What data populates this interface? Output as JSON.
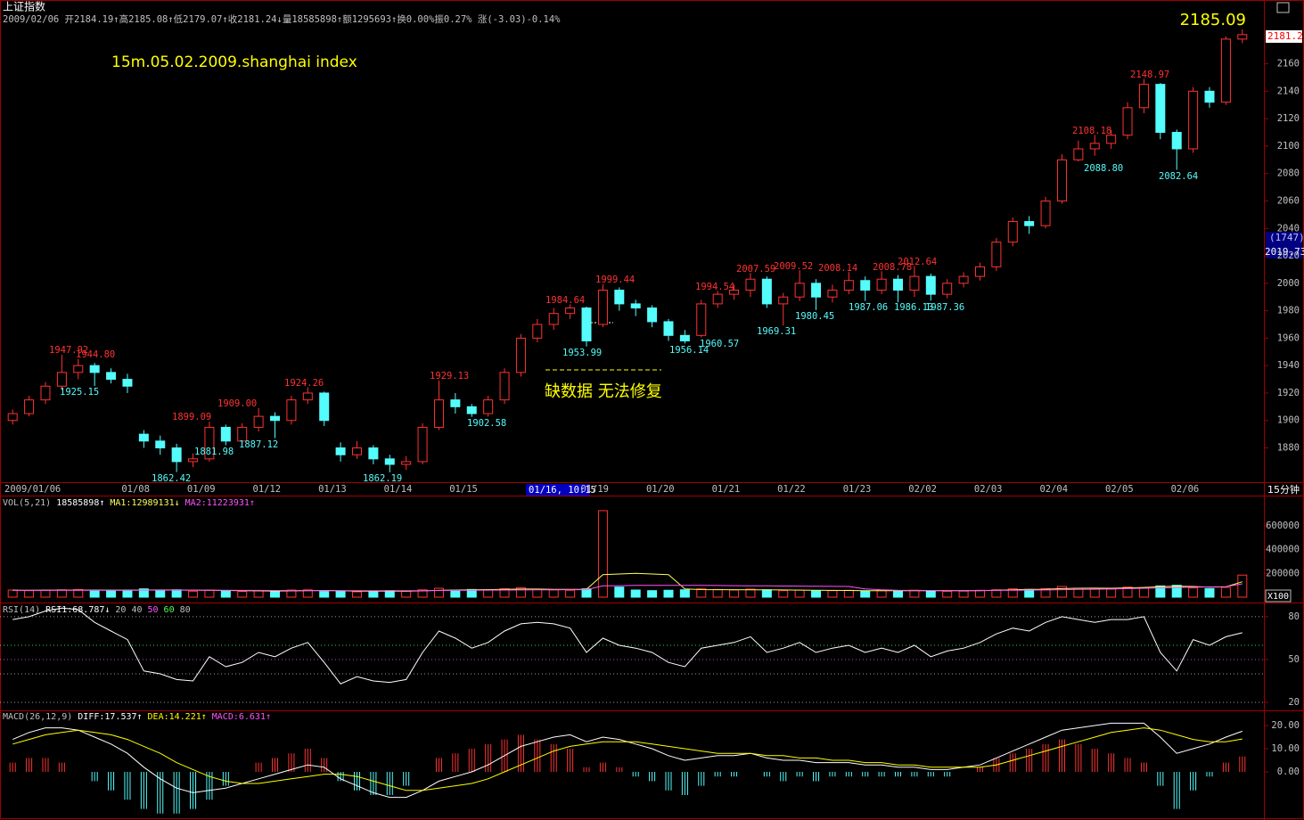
{
  "chart_data": [
    {
      "type": "candlestick",
      "title": "上证指数",
      "subtitle": "2009/02/06 开2184.19↑高2185.08↑低2179.07↑收2181.24↓量18585898↑额1295693↑换0.00%振0.27% 涨(-3.03)-0.14%",
      "price_readout": "2185.09",
      "annotations": [
        "15m.05.02.2009.shanghai index",
        "缺数据 无法修复"
      ],
      "right_labels": [
        "2181.2",
        "(1747)",
        "2019.73"
      ],
      "cursor_label": "01/16, 10:15",
      "period": "15分钟",
      "categories": [
        "2009/01/06",
        null,
        null,
        null,
        null,
        null,
        null,
        null,
        "01/08",
        null,
        null,
        null,
        "01/09",
        null,
        null,
        null,
        "01/12",
        null,
        null,
        null,
        "01/13",
        null,
        null,
        null,
        "01/14",
        null,
        null,
        null,
        "01/15",
        null,
        null,
        null,
        null,
        null,
        null,
        null,
        "01/19",
        null,
        null,
        null,
        "01/20",
        null,
        null,
        null,
        "01/21",
        null,
        null,
        null,
        "01/22",
        null,
        null,
        null,
        "01/23",
        null,
        null,
        null,
        "02/02",
        null,
        null,
        null,
        "02/03",
        null,
        null,
        null,
        "02/04",
        null,
        null,
        null,
        "02/05",
        null,
        null,
        null,
        "02/06",
        null,
        null,
        null
      ],
      "open": [
        1900,
        1905,
        1915,
        1925,
        1935,
        1940,
        1935,
        1930,
        1890,
        1885,
        1880,
        1870,
        1872,
        1895,
        1885,
        1895,
        1903,
        1900,
        1915,
        1920,
        1880,
        1875,
        1880,
        1872,
        1868,
        1870,
        1895,
        1915,
        1910,
        1905,
        1915,
        1935,
        1960,
        1970,
        1978,
        1982,
        1970,
        1995,
        1985,
        1982,
        1972,
        1962,
        1962,
        1985,
        1992,
        1995,
        2003,
        1985,
        1990,
        2000,
        1990,
        1995,
        2002,
        1995,
        2003,
        1995,
        2005,
        1992,
        2000,
        2005,
        2012,
        2030,
        2045,
        2042,
        2060,
        2090,
        2098,
        2102,
        2108,
        2128,
        2145,
        2110,
        2098,
        2140,
        2132,
        2178
      ],
      "high": [
        1908,
        1918,
        1928,
        1947.92,
        1944.8,
        1942,
        1938,
        1934,
        1893,
        1889,
        1883,
        1876,
        1899.09,
        1897,
        1898,
        1909,
        1906,
        1918,
        1924.26,
        1921,
        1884,
        1885,
        1882,
        1875,
        1874,
        1898,
        1929.13,
        1920,
        1912,
        1918,
        1938,
        1963,
        1974,
        1982,
        1984.64,
        1983,
        1999.44,
        1997,
        1988,
        1984,
        1974,
        1966,
        1988,
        1994.54,
        1999,
        2007.59,
        2005,
        1993,
        2009.52,
        2003,
        1999,
        2008.14,
        2005,
        2008.78,
        2006,
        2012.64,
        2007,
        2003,
        2008,
        2015,
        2033,
        2048,
        2049,
        2063,
        2094,
        2104,
        2108.18,
        2112,
        2132,
        2148.97,
        2146,
        2112,
        2143,
        2143,
        2180,
        2185.08
      ],
      "low": [
        1897,
        1903,
        1912,
        1922,
        1930,
        1925.15,
        1927,
        1920,
        1880,
        1875,
        1862.42,
        1866,
        1870,
        1881.98,
        1883,
        1892,
        1887.12,
        1897,
        1912,
        1896,
        1870,
        1872,
        1868,
        1862.19,
        1864,
        1868,
        1893,
        1905,
        1902.58,
        1903,
        1912,
        1932,
        1957,
        1966,
        1974,
        1953.99,
        1968,
        1980,
        1976,
        1968,
        1958,
        1956.14,
        1960.57,
        1982,
        1988,
        1990,
        1982,
        1969.31,
        1987,
        1980.45,
        1986,
        1992,
        1987.06,
        1992,
        1986.13,
        1990,
        1987.36,
        1989,
        1997,
        2002,
        2009,
        2027,
        2036,
        2040,
        2058,
        2088.8,
        2093,
        2098,
        2105,
        2124,
        2105,
        2082.64,
        2095,
        2128,
        2130,
        2175
      ],
      "close": [
        1905,
        1915,
        1925,
        1935,
        1940,
        1935,
        1930,
        1925,
        1885,
        1880,
        1870,
        1872,
        1895,
        1885,
        1895,
        1903,
        1900,
        1915,
        1920,
        1900,
        1875,
        1880,
        1872,
        1868,
        1870,
        1895,
        1915,
        1910,
        1905,
        1915,
        1935,
        1960,
        1970,
        1978,
        1982,
        1958,
        1995,
        1985,
        1982,
        1972,
        1962,
        1958,
        1985,
        1992,
        1995,
        2003,
        1985,
        1990,
        2000,
        1990,
        1995,
        2002,
        1995,
        2003,
        1995,
        2005,
        1992,
        2000,
        2005,
        2012,
        2030,
        2045,
        2042,
        2060,
        2090,
        2098,
        2102,
        2108,
        2128,
        2145,
        2110,
        2098,
        2140,
        2132,
        2178,
        2181.24
      ],
      "up_color": "#ff3232",
      "down_color": "#54fcfc",
      "high_labels": [
        "1947.92",
        "1944.80",
        "1899.09",
        "1909.00",
        "1924.26",
        "1929.13",
        "1984.64",
        "1999.44",
        "1994.54",
        "2007.59",
        "2009.52",
        "2008.14",
        "2008.78",
        "2012.64",
        "2108.18",
        "2148.97"
      ],
      "low_labels": [
        "1925.15",
        "1862.42",
        "1881.98",
        "1887.12",
        "1862.19",
        "1902.58",
        "1953.99",
        "1956.14",
        "1960.57",
        "1969.31",
        "1980.45",
        "1987.06",
        "1986.13",
        "1987.36",
        "2088.80",
        "2082.64"
      ],
      "ylim": [
        1855,
        2187
      ],
      "yticks": [
        1880,
        1900,
        1920,
        1940,
        1960,
        1980,
        2000,
        2020,
        2040,
        2060,
        2080,
        2100,
        2120,
        2140,
        2160
      ]
    },
    {
      "type": "bar",
      "title": "VOL(5,21)",
      "value_readout": "18585898↑",
      "unit_label": "X100",
      "values": [
        60000,
        55000,
        58000,
        62000,
        65000,
        52000,
        58000,
        60000,
        70000,
        55000,
        62000,
        50000,
        58000,
        52000,
        48000,
        55000,
        50000,
        60000,
        62000,
        48000,
        52000,
        45000,
        48000,
        55000,
        50000,
        62000,
        75000,
        58000,
        65000,
        60000,
        72000,
        80000,
        65000,
        62000,
        58000,
        70000,
        728000,
        85000,
        60000,
        55000,
        58000,
        62000,
        70000,
        65000,
        60000,
        68000,
        62000,
        55000,
        60000,
        52000,
        55000,
        58000,
        50000,
        55000,
        52000,
        58000,
        55000,
        50000,
        52000,
        58000,
        62000,
        70000,
        65000,
        72000,
        90000,
        75000,
        70000,
        68000,
        85000,
        80000,
        95000,
        100000,
        78000,
        72000,
        82000,
        185858.98
      ],
      "series": [
        {
          "name": "MA1:12989131↓",
          "color": "#ffff54",
          "values": [
            58000,
            58000,
            59000,
            59000,
            59000,
            60000,
            59000,
            59000,
            60000,
            61000,
            60000,
            59000,
            58000,
            56000,
            54000,
            53000,
            52000,
            53000,
            55000,
            56000,
            54000,
            51000,
            50000,
            50000,
            51000,
            53000,
            57000,
            60000,
            62000,
            64000,
            66000,
            68000,
            68000,
            66000,
            65000,
            66000,
            190000,
            195000,
            200000,
            195000,
            190000,
            70000,
            64000,
            63000,
            63000,
            62000,
            62000,
            61000,
            59000,
            58000,
            57000,
            56000,
            55000,
            54000,
            54000,
            54000,
            54000,
            54000,
            54000,
            55000,
            58000,
            62000,
            65000,
            67000,
            72000,
            75000,
            76000,
            75000,
            78000,
            82000,
            88000,
            92000,
            90000,
            85000,
            87000,
            129891.31
          ]
        },
        {
          "name": "MA2:11223931↑",
          "color": "#ff54ff",
          "values": [
            57000,
            57000,
            57000,
            58000,
            58000,
            58000,
            58000,
            58000,
            59000,
            59000,
            59000,
            59000,
            58000,
            58000,
            57000,
            57000,
            56000,
            56000,
            56000,
            55000,
            55000,
            54000,
            54000,
            54000,
            54000,
            55000,
            56000,
            57000,
            58000,
            59000,
            60000,
            61000,
            62000,
            62000,
            63000,
            63000,
            95000,
            97000,
            99000,
            100000,
            100000,
            100000,
            99000,
            98000,
            97000,
            96000,
            95000,
            94000,
            93000,
            92000,
            91000,
            90000,
            70000,
            62000,
            58000,
            57000,
            56000,
            56000,
            56000,
            56000,
            57000,
            58000,
            60000,
            61000,
            63000,
            65000,
            67000,
            69000,
            72000,
            75000,
            78000,
            82000,
            84000,
            86000,
            88000,
            112239.31
          ]
        }
      ],
      "ylim": [
        0,
        840000
      ],
      "yticks": [
        200000,
        400000,
        600000
      ]
    },
    {
      "type": "line",
      "title": "RSI(14)",
      "series": [
        {
          "name": "RSI1:68.787↓",
          "color": "#ffffff",
          "values": [
            78,
            80,
            84,
            86,
            85,
            76,
            70,
            64,
            42,
            40,
            36,
            35,
            52,
            45,
            48,
            55,
            52,
            58,
            62,
            48,
            33,
            38,
            35,
            34,
            36,
            55,
            70,
            65,
            58,
            62,
            70,
            75,
            76,
            75,
            72,
            55,
            65,
            60,
            58,
            55,
            48,
            45,
            58,
            60,
            62,
            66,
            55,
            58,
            62,
            55,
            58,
            60,
            55,
            58,
            55,
            60,
            52,
            56,
            58,
            62,
            68,
            72,
            70,
            76,
            80,
            78,
            76,
            78,
            78,
            80,
            55,
            42,
            64,
            60,
            66,
            68.787
          ]
        }
      ],
      "levels": [
        20,
        40,
        50,
        60,
        80
      ],
      "level_colors": [
        "#c0c0c0",
        "#c0c0c0",
        "#ff54ff",
        "#54ff54",
        "#c0c0c0"
      ],
      "ylim": [
        14.4,
        88.7
      ],
      "yticks": [
        20,
        50,
        80
      ]
    },
    {
      "type": "macd",
      "title": "MACD(26,12,9)",
      "series": [
        {
          "name": "DIFF:17.537↑",
          "color": "#ffffff",
          "values": [
            14,
            17,
            19,
            19,
            18,
            15,
            12,
            8,
            2,
            -3,
            -7,
            -9,
            -8,
            -7,
            -5,
            -3,
            -1,
            1,
            3,
            2,
            -3,
            -6,
            -9,
            -11,
            -11,
            -8,
            -4,
            -2,
            0,
            3,
            7,
            11,
            13,
            15,
            16,
            13,
            15,
            14,
            12,
            10,
            7,
            5,
            6,
            7,
            7,
            8,
            6,
            5,
            5,
            4,
            4,
            4,
            3,
            3,
            2,
            2,
            1,
            1,
            2,
            3,
            6,
            9,
            12,
            15,
            18,
            19,
            20,
            21,
            21,
            21,
            15,
            8,
            10,
            12,
            15,
            17.537
          ]
        },
        {
          "name": "DEA:14.221↑",
          "color": "#ffff00",
          "values": [
            12,
            14,
            16,
            17,
            18,
            17,
            16,
            14,
            11,
            8,
            4,
            1,
            -2,
            -4,
            -5,
            -5,
            -4,
            -3,
            -2,
            -1,
            -1,
            -2,
            -4,
            -6,
            -8,
            -8,
            -7,
            -6,
            -5,
            -3,
            0,
            3,
            6,
            9,
            11,
            12,
            13,
            13,
            13,
            12,
            11,
            10,
            9,
            8,
            8,
            8,
            7,
            7,
            6,
            6,
            5,
            5,
            4,
            4,
            3,
            3,
            2,
            2,
            2,
            2,
            3,
            5,
            7,
            9,
            11,
            13,
            15,
            17,
            18,
            19,
            18,
            16,
            14,
            13,
            13,
            14.221
          ]
        },
        {
          "name": "MACD:6.631↑",
          "color": "#ff54ff",
          "values": [
            4,
            6,
            6,
            4,
            0,
            -4,
            -8,
            -12,
            -16,
            -18,
            -18,
            -16,
            -12,
            -6,
            0,
            4,
            6,
            8,
            10,
            6,
            -4,
            -8,
            -10,
            -10,
            -6,
            0,
            6,
            8,
            10,
            12,
            14,
            16,
            14,
            12,
            10,
            2,
            4,
            2,
            -2,
            -4,
            -8,
            -10,
            -6,
            -2,
            -2,
            0,
            -2,
            -4,
            -2,
            -4,
            -2,
            -2,
            -2,
            -2,
            -2,
            -2,
            -2,
            -2,
            0,
            2,
            6,
            8,
            10,
            12,
            14,
            12,
            10,
            8,
            6,
            4,
            -6,
            -16,
            -8,
            -2,
            4,
            6.631
          ]
        }
      ],
      "pos_color": "#ff3232",
      "neg_color": "#54fcfc",
      "ylim": [
        -20,
        25.4
      ],
      "yticks": [
        {
          "value": 0,
          "label": "0.00"
        },
        {
          "value": 10,
          "label": "10.00"
        },
        {
          "value": 20,
          "label": "20.00"
        }
      ]
    }
  ]
}
